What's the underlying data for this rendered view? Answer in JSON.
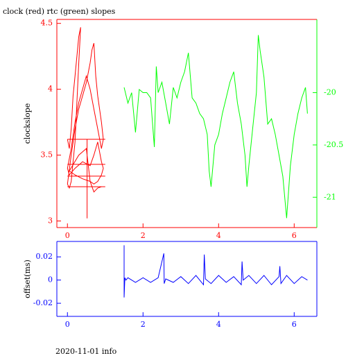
{
  "chart_data": [
    {
      "type": "line",
      "title": "clock (red) rtc (green) slopes",
      "y_label": "clockslope",
      "xlim": [
        -0.28,
        6.6
      ],
      "xticks": [
        0,
        2,
        4,
        6
      ],
      "ylim": [
        2.95,
        4.53
      ],
      "yticks": [
        3,
        3.5,
        4,
        4.5
      ],
      "y2lim": [
        -21.29,
        -19.3
      ],
      "y2ticks": [
        -21,
        -20.5,
        -20
      ],
      "axis_color": "#ff0000",
      "y2_axis_color": "#00ff00",
      "series": [
        {
          "color": "#ff0000",
          "x": [
            0.0,
            0.05,
            0.1,
            0.15,
            0.2,
            0.25,
            0.3,
            0.35,
            0.3,
            0.25,
            0.2,
            0.15,
            0.1,
            0.05,
            0.0,
            0.1,
            0.2,
            0.3,
            0.4,
            0.5,
            0.6,
            0.65,
            0.7,
            0.75,
            0.8,
            0.85,
            0.9,
            0.95,
            0.9,
            0.8,
            0.7,
            0.6,
            0.5,
            0.4,
            0.3,
            0.2,
            0.1,
            0.0,
            0.05,
            0.2,
            0.4,
            0.6,
            0.7,
            0.8,
            0.9,
            0.95,
            0.9,
            0.8,
            0.7,
            0.6,
            0.4,
            0.2,
            0.05,
            0.3,
            0.5,
            0.6,
            0.7,
            0.8,
            0.9,
            null,
            0.0,
            1.0,
            null,
            0.0,
            1.0,
            null,
            0.0,
            1.0,
            null,
            0.0,
            1.0,
            null,
            0.52,
            0.52
          ],
          "values": [
            3.62,
            3.55,
            3.7,
            3.95,
            4.1,
            4.25,
            4.4,
            4.47,
            4.2,
            3.9,
            3.6,
            3.45,
            3.3,
            3.25,
            3.28,
            3.5,
            3.7,
            3.85,
            3.95,
            4.05,
            4.2,
            4.3,
            4.35,
            4.1,
            3.95,
            3.85,
            3.75,
            3.62,
            3.55,
            3.7,
            3.85,
            4.0,
            4.1,
            4.0,
            3.9,
            3.75,
            3.55,
            3.4,
            3.35,
            3.4,
            3.45,
            3.42,
            3.5,
            3.6,
            3.45,
            3.4,
            3.35,
            3.3,
            3.28,
            3.3,
            3.32,
            3.35,
            3.38,
            3.5,
            3.55,
            3.3,
            3.22,
            3.25,
            3.26,
            null,
            3.62,
            3.62,
            null,
            3.43,
            3.43,
            null,
            3.34,
            3.34,
            null,
            3.26,
            3.26,
            null,
            3.62,
            3.02
          ]
        },
        {
          "color": "#00ff00",
          "axis": "y2",
          "x": [
            1.5,
            1.6,
            1.7,
            1.8,
            1.9,
            2.0,
            2.1,
            2.2,
            2.3,
            2.35,
            2.4,
            2.5,
            2.6,
            2.7,
            2.8,
            2.9,
            3.0,
            3.1,
            3.2,
            3.3,
            3.4,
            3.5,
            3.6,
            3.7,
            3.75,
            3.8,
            3.9,
            4.0,
            4.1,
            4.2,
            4.3,
            4.4,
            4.5,
            4.6,
            4.7,
            4.75,
            4.8,
            4.9,
            5.0,
            5.05,
            5.1,
            5.2,
            5.3,
            5.4,
            5.5,
            5.6,
            5.7,
            5.8,
            5.9,
            6.0,
            6.1,
            6.2,
            6.3,
            6.35
          ],
          "values": [
            -19.95,
            -20.1,
            -20.0,
            -20.38,
            -19.97,
            -20.0,
            -20.0,
            -20.05,
            -20.52,
            -19.75,
            -20.0,
            -19.9,
            -20.1,
            -20.3,
            -19.95,
            -20.05,
            -19.9,
            -19.8,
            -19.62,
            -20.05,
            -20.1,
            -20.2,
            -20.25,
            -20.4,
            -20.75,
            -20.9,
            -20.5,
            -20.4,
            -20.2,
            -20.05,
            -19.9,
            -19.8,
            -20.1,
            -20.3,
            -20.6,
            -20.9,
            -20.7,
            -20.35,
            -20.0,
            -19.45,
            -19.6,
            -19.85,
            -20.3,
            -20.25,
            -20.4,
            -20.6,
            -20.8,
            -21.2,
            -20.7,
            -20.4,
            -20.2,
            -20.05,
            -19.95,
            -20.2
          ]
        }
      ]
    },
    {
      "type": "line",
      "y_label": "offset(ms)",
      "footer": "2020-11-01 info",
      "xlim": [
        -0.28,
        6.6
      ],
      "xticks": [
        0,
        2,
        4,
        6
      ],
      "ylim": [
        -0.0313,
        0.0333
      ],
      "yticks": [
        -0.02,
        0,
        0.02
      ],
      "axis_color": "#0000ff",
      "series": [
        {
          "color": "#0000ff",
          "x": [
            1.5,
            1.5,
            1.52,
            1.55,
            1.6,
            1.8,
            2.0,
            2.2,
            2.4,
            2.55,
            2.56,
            2.6,
            2.8,
            3.0,
            3.2,
            3.4,
            3.6,
            3.62,
            3.65,
            3.8,
            4.0,
            4.2,
            4.4,
            4.6,
            4.62,
            4.65,
            4.8,
            5.0,
            5.2,
            5.4,
            5.6,
            5.62,
            5.65,
            5.8,
            6.0,
            6.2,
            6.35
          ],
          "values": [
            0.03,
            -0.015,
            0.002,
            0.0,
            0.002,
            -0.002,
            0.002,
            -0.002,
            0.002,
            0.023,
            -0.003,
            0.001,
            -0.002,
            0.003,
            -0.003,
            0.004,
            -0.004,
            0.022,
            0.001,
            -0.003,
            0.004,
            -0.002,
            0.003,
            -0.004,
            0.016,
            0.0,
            0.004,
            -0.003,
            0.004,
            -0.004,
            0.003,
            0.012,
            -0.003,
            0.004,
            -0.003,
            0.003,
            0.0
          ]
        }
      ]
    }
  ]
}
